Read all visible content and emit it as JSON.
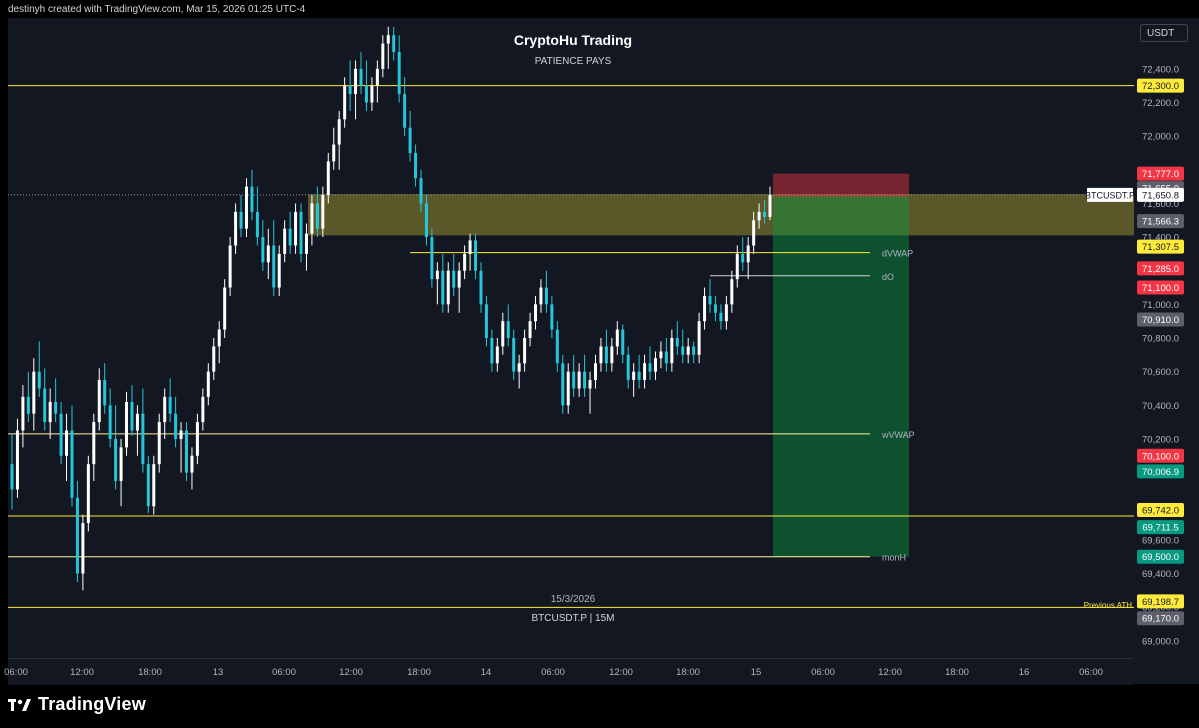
{
  "header": {
    "credit": "destinyh created with TradingView.com, Mar 15, 2026 01:25 UTC-4"
  },
  "currency_button": "USDT",
  "brand": {
    "name": "TradingView",
    "icon": "tradingview-logo-icon"
  },
  "watermark": {
    "title": "CryptoHu Trading",
    "subtitle": "PATIENCE PAYS",
    "date": "15/3/2026",
    "symbol": "BTCUSDT.P | 15M"
  },
  "previous_ath_label": "Previous ATH",
  "colors": {
    "background": "#131722",
    "up_candle": "#ffffff",
    "down_candle": "#26c6da",
    "level_line": "#ffeb3b",
    "label_red": "#f23645",
    "label_green": "#089981",
    "label_yellow": "#ffeb3b",
    "label_gray": "#5d606b"
  },
  "chart_data": {
    "type": "candlestick",
    "symbol": "BTCUSDT.P",
    "interval": "15M",
    "y_axis": {
      "range": [
        68900,
        72450
      ],
      "ticks": [
        72400,
        72200,
        72000,
        71800,
        71600,
        71400,
        71200,
        71000,
        70800,
        70600,
        70400,
        70200,
        70000,
        69800,
        69600,
        69400,
        69200,
        69000
      ],
      "tick_labels": [
        "72,400.0",
        "72,200.0",
        "72,000.0",
        "71,800.0",
        "71,600.0",
        "71,400.0",
        "71,200.0",
        "71,000.0",
        "70,800.0",
        "70,600.0",
        "70,400.0",
        "70,200.0",
        "70,000.0",
        "69,800.0",
        "69,600.0",
        "69,400.0",
        "69,200.0",
        "69,000.0"
      ]
    },
    "x_axis": {
      "tick_labels": [
        "06:00",
        "12:00",
        "18:00",
        "13",
        "06:00",
        "12:00",
        "18:00",
        "14",
        "06:00",
        "12:00",
        "18:00",
        "15",
        "06:00",
        "12:00",
        "18:00",
        "16",
        "06:00"
      ]
    },
    "current_price": {
      "label": "BTCUSDT.P",
      "value": "71,650.8",
      "price": 71650.8
    },
    "price_labels": [
      {
        "value": "72,300.0",
        "price": 72300,
        "color": "yellow"
      },
      {
        "value": "71,777.0",
        "price": 71777,
        "color": "red"
      },
      {
        "value": "71,655.0",
        "price": 71655,
        "color": "gray"
      },
      {
        "value": "71,566.3",
        "price": 71566.3,
        "color": "gray"
      },
      {
        "value": "71,307.5",
        "price": 71307.5,
        "color": "yellow"
      },
      {
        "value": "71,285.0",
        "price": 71285,
        "color": "red"
      },
      {
        "value": "71,100.0",
        "price": 71100,
        "color": "red"
      },
      {
        "value": "70,910.0",
        "price": 70910,
        "color": "gray"
      },
      {
        "value": "70,100.0",
        "price": 70100,
        "color": "red"
      },
      {
        "value": "70,006.9",
        "price": 70006.9,
        "color": "green"
      },
      {
        "value": "69,742.0",
        "price": 69742,
        "color": "yellow"
      },
      {
        "value": "69,711.5",
        "price": 69711.5,
        "color": "green"
      },
      {
        "value": "69,500.0",
        "price": 69500,
        "color": "green"
      },
      {
        "value": "69,198.7",
        "price": 69198.7,
        "color": "yellow"
      },
      {
        "value": "69,170.0",
        "price": 69170,
        "color": "gray"
      }
    ],
    "levels": [
      {
        "price": 72300,
        "label": ""
      },
      {
        "price": 71307.5,
        "label": "dVWAP"
      },
      {
        "price": 71170,
        "label": "dO"
      },
      {
        "price": 70230,
        "label": "wVWAP"
      },
      {
        "price": 69742,
        "label": ""
      },
      {
        "price": 69500,
        "label": "monH"
      },
      {
        "price": 69198.7,
        "label": ""
      }
    ],
    "zones": [
      {
        "kind": "supply",
        "top": 71655,
        "bottom": 71410
      },
      {
        "kind": "stop",
        "top": 71777,
        "bottom": 71640
      },
      {
        "kind": "target",
        "top": 71640,
        "bottom": 69500
      }
    ],
    "candles": [
      {
        "o": 70050,
        "h": 70230,
        "l": 69780,
        "c": 69900
      },
      {
        "o": 69900,
        "h": 70320,
        "l": 69850,
        "c": 70250
      },
      {
        "o": 70250,
        "h": 70520,
        "l": 70150,
        "c": 70450
      },
      {
        "o": 70450,
        "h": 70600,
        "l": 70300,
        "c": 70350
      },
      {
        "o": 70350,
        "h": 70680,
        "l": 70250,
        "c": 70600
      },
      {
        "o": 70600,
        "h": 70780,
        "l": 70450,
        "c": 70500
      },
      {
        "o": 70500,
        "h": 70620,
        "l": 70250,
        "c": 70300
      },
      {
        "o": 70300,
        "h": 70500,
        "l": 70200,
        "c": 70420
      },
      {
        "o": 70420,
        "h": 70560,
        "l": 70300,
        "c": 70350
      },
      {
        "o": 70350,
        "h": 70420,
        "l": 70050,
        "c": 70100
      },
      {
        "o": 70100,
        "h": 70350,
        "l": 69950,
        "c": 70250
      },
      {
        "o": 70250,
        "h": 70400,
        "l": 69800,
        "c": 69850
      },
      {
        "o": 69850,
        "h": 69950,
        "l": 69350,
        "c": 69400
      },
      {
        "o": 69400,
        "h": 69750,
        "l": 69300,
        "c": 69700
      },
      {
        "o": 69700,
        "h": 70100,
        "l": 69650,
        "c": 70050
      },
      {
        "o": 70050,
        "h": 70350,
        "l": 69950,
        "c": 70300
      },
      {
        "o": 70300,
        "h": 70620,
        "l": 70250,
        "c": 70550
      },
      {
        "o": 70550,
        "h": 70650,
        "l": 70350,
        "c": 70400
      },
      {
        "o": 70400,
        "h": 70500,
        "l": 70150,
        "c": 70200
      },
      {
        "o": 70200,
        "h": 70400,
        "l": 69900,
        "c": 69950
      },
      {
        "o": 69950,
        "h": 70200,
        "l": 69800,
        "c": 70150
      },
      {
        "o": 70150,
        "h": 70480,
        "l": 70100,
        "c": 70420
      },
      {
        "o": 70420,
        "h": 70520,
        "l": 70220,
        "c": 70250
      },
      {
        "o": 70250,
        "h": 70400,
        "l": 70100,
        "c": 70350
      },
      {
        "o": 70350,
        "h": 70500,
        "l": 70000,
        "c": 70050
      },
      {
        "o": 70050,
        "h": 70100,
        "l": 69760,
        "c": 69800
      },
      {
        "o": 69800,
        "h": 70100,
        "l": 69750,
        "c": 70050
      },
      {
        "o": 70050,
        "h": 70350,
        "l": 70000,
        "c": 70300
      },
      {
        "o": 70300,
        "h": 70500,
        "l": 70200,
        "c": 70450
      },
      {
        "o": 70450,
        "h": 70560,
        "l": 70300,
        "c": 70350
      },
      {
        "o": 70350,
        "h": 70450,
        "l": 70150,
        "c": 70200
      },
      {
        "o": 70200,
        "h": 70300,
        "l": 70000,
        "c": 70250
      },
      {
        "o": 70250,
        "h": 70300,
        "l": 69950,
        "c": 70000
      },
      {
        "o": 70000,
        "h": 70150,
        "l": 69900,
        "c": 70100
      },
      {
        "o": 70100,
        "h": 70350,
        "l": 70050,
        "c": 70300
      },
      {
        "o": 70300,
        "h": 70500,
        "l": 70250,
        "c": 70450
      },
      {
        "o": 70450,
        "h": 70650,
        "l": 70400,
        "c": 70600
      },
      {
        "o": 70600,
        "h": 70800,
        "l": 70550,
        "c": 70750
      },
      {
        "o": 70750,
        "h": 70900,
        "l": 70650,
        "c": 70850
      },
      {
        "o": 70850,
        "h": 71150,
        "l": 70800,
        "c": 71100
      },
      {
        "o": 71100,
        "h": 71400,
        "l": 71050,
        "c": 71350
      },
      {
        "o": 71350,
        "h": 71600,
        "l": 71300,
        "c": 71550
      },
      {
        "o": 71550,
        "h": 71650,
        "l": 71400,
        "c": 71450
      },
      {
        "o": 71450,
        "h": 71750,
        "l": 71400,
        "c": 71700
      },
      {
        "o": 71700,
        "h": 71800,
        "l": 71500,
        "c": 71550
      },
      {
        "o": 71550,
        "h": 71700,
        "l": 71350,
        "c": 71400
      },
      {
        "o": 71400,
        "h": 71500,
        "l": 71200,
        "c": 71250
      },
      {
        "o": 71250,
        "h": 71450,
        "l": 71150,
        "c": 71350
      },
      {
        "o": 71350,
        "h": 71500,
        "l": 71050,
        "c": 71100
      },
      {
        "o": 71100,
        "h": 71350,
        "l": 71050,
        "c": 71300
      },
      {
        "o": 71300,
        "h": 71500,
        "l": 71250,
        "c": 71450
      },
      {
        "o": 71450,
        "h": 71550,
        "l": 71300,
        "c": 71350
      },
      {
        "o": 71350,
        "h": 71600,
        "l": 71300,
        "c": 71550
      },
      {
        "o": 71550,
        "h": 71600,
        "l": 71250,
        "c": 71300
      },
      {
        "o": 71300,
        "h": 71480,
        "l": 71200,
        "c": 71420
      },
      {
        "o": 71420,
        "h": 71650,
        "l": 71350,
        "c": 71600
      },
      {
        "o": 71600,
        "h": 71700,
        "l": 71400,
        "c": 71450
      },
      {
        "o": 71450,
        "h": 71700,
        "l": 71400,
        "c": 71650
      },
      {
        "o": 71650,
        "h": 71900,
        "l": 71600,
        "c": 71850
      },
      {
        "o": 71850,
        "h": 72050,
        "l": 71800,
        "c": 71950
      },
      {
        "o": 71950,
        "h": 72150,
        "l": 71800,
        "c": 72100
      },
      {
        "o": 72100,
        "h": 72350,
        "l": 72050,
        "c": 72300
      },
      {
        "o": 72300,
        "h": 72450,
        "l": 72150,
        "c": 72250
      },
      {
        "o": 72250,
        "h": 72450,
        "l": 72100,
        "c": 72400
      },
      {
        "o": 72400,
        "h": 72500,
        "l": 72250,
        "c": 72300
      },
      {
        "o": 72300,
        "h": 72450,
        "l": 72150,
        "c": 72200
      },
      {
        "o": 72200,
        "h": 72350,
        "l": 72150,
        "c": 72300
      },
      {
        "o": 72300,
        "h": 72450,
        "l": 72200,
        "c": 72400
      },
      {
        "o": 72400,
        "h": 72600,
        "l": 72350,
        "c": 72550
      },
      {
        "o": 72550,
        "h": 72650,
        "l": 72400,
        "c": 72600
      },
      {
        "o": 72600,
        "h": 72650,
        "l": 72450,
        "c": 72500
      },
      {
        "o": 72500,
        "h": 72600,
        "l": 72200,
        "c": 72250
      },
      {
        "o": 72250,
        "h": 72350,
        "l": 72000,
        "c": 72050
      },
      {
        "o": 72050,
        "h": 72150,
        "l": 71850,
        "c": 71900
      },
      {
        "o": 71900,
        "h": 71950,
        "l": 71700,
        "c": 71750
      },
      {
        "o": 71750,
        "h": 71800,
        "l": 71550,
        "c": 71600
      },
      {
        "o": 71600,
        "h": 71650,
        "l": 71350,
        "c": 71400
      },
      {
        "o": 71400,
        "h": 71450,
        "l": 71100,
        "c": 71150
      },
      {
        "o": 71150,
        "h": 71250,
        "l": 71000,
        "c": 71200
      },
      {
        "o": 71200,
        "h": 71300,
        "l": 70950,
        "c": 71000
      },
      {
        "o": 71000,
        "h": 71250,
        "l": 70950,
        "c": 71200
      },
      {
        "o": 71200,
        "h": 71300,
        "l": 71050,
        "c": 71100
      },
      {
        "o": 71100,
        "h": 71250,
        "l": 70950,
        "c": 71200
      },
      {
        "o": 71200,
        "h": 71350,
        "l": 71150,
        "c": 71300
      },
      {
        "o": 71300,
        "h": 71420,
        "l": 71200,
        "c": 71380
      },
      {
        "o": 71380,
        "h": 71420,
        "l": 71150,
        "c": 71200
      },
      {
        "o": 71200,
        "h": 71250,
        "l": 70950,
        "c": 71000
      },
      {
        "o": 71000,
        "h": 71050,
        "l": 70750,
        "c": 70800
      },
      {
        "o": 70800,
        "h": 70850,
        "l": 70600,
        "c": 70650
      },
      {
        "o": 70650,
        "h": 70800,
        "l": 70600,
        "c": 70750
      },
      {
        "o": 70750,
        "h": 70950,
        "l": 70700,
        "c": 70900
      },
      {
        "o": 70900,
        "h": 71000,
        "l": 70750,
        "c": 70800
      },
      {
        "o": 70800,
        "h": 70850,
        "l": 70550,
        "c": 70600
      },
      {
        "o": 70600,
        "h": 70700,
        "l": 70500,
        "c": 70650
      },
      {
        "o": 70650,
        "h": 70850,
        "l": 70600,
        "c": 70800
      },
      {
        "o": 70800,
        "h": 70950,
        "l": 70750,
        "c": 70900
      },
      {
        "o": 70900,
        "h": 71050,
        "l": 70850,
        "c": 71000
      },
      {
        "o": 71000,
        "h": 71150,
        "l": 70950,
        "c": 71100
      },
      {
        "o": 71100,
        "h": 71200,
        "l": 70950,
        "c": 71000
      },
      {
        "o": 71000,
        "h": 71050,
        "l": 70800,
        "c": 70850
      },
      {
        "o": 70850,
        "h": 70900,
        "l": 70600,
        "c": 70650
      },
      {
        "o": 70650,
        "h": 70700,
        "l": 70350,
        "c": 70400
      },
      {
        "o": 70400,
        "h": 70650,
        "l": 70350,
        "c": 70600
      },
      {
        "o": 70600,
        "h": 70700,
        "l": 70450,
        "c": 70500
      },
      {
        "o": 70500,
        "h": 70650,
        "l": 70450,
        "c": 70600
      },
      {
        "o": 70600,
        "h": 70700,
        "l": 70450,
        "c": 70500
      },
      {
        "o": 70500,
        "h": 70600,
        "l": 70350,
        "c": 70550
      },
      {
        "o": 70550,
        "h": 70700,
        "l": 70500,
        "c": 70650
      },
      {
        "o": 70650,
        "h": 70800,
        "l": 70600,
        "c": 70750
      },
      {
        "o": 70750,
        "h": 70850,
        "l": 70600,
        "c": 70650
      },
      {
        "o": 70650,
        "h": 70800,
        "l": 70600,
        "c": 70750
      },
      {
        "o": 70750,
        "h": 70900,
        "l": 70700,
        "c": 70850
      },
      {
        "o": 70850,
        "h": 70880,
        "l": 70650,
        "c": 70700
      },
      {
        "o": 70700,
        "h": 70750,
        "l": 70500,
        "c": 70550
      },
      {
        "o": 70550,
        "h": 70650,
        "l": 70450,
        "c": 70600
      },
      {
        "o": 70600,
        "h": 70700,
        "l": 70500,
        "c": 70550
      },
      {
        "o": 70550,
        "h": 70700,
        "l": 70500,
        "c": 70650
      },
      {
        "o": 70650,
        "h": 70750,
        "l": 70550,
        "c": 70600
      },
      {
        "o": 70600,
        "h": 70720,
        "l": 70550,
        "c": 70680
      },
      {
        "o": 70680,
        "h": 70780,
        "l": 70620,
        "c": 70720
      },
      {
        "o": 70720,
        "h": 70800,
        "l": 70600,
        "c": 70650
      },
      {
        "o": 70650,
        "h": 70850,
        "l": 70600,
        "c": 70800
      },
      {
        "o": 70800,
        "h": 70900,
        "l": 70700,
        "c": 70750
      },
      {
        "o": 70750,
        "h": 70850,
        "l": 70650,
        "c": 70700
      },
      {
        "o": 70700,
        "h": 70800,
        "l": 70650,
        "c": 70750
      },
      {
        "o": 70750,
        "h": 70780,
        "l": 70650,
        "c": 70700
      },
      {
        "o": 70700,
        "h": 70950,
        "l": 70650,
        "c": 70900
      },
      {
        "o": 70900,
        "h": 71100,
        "l": 70850,
        "c": 71050
      },
      {
        "o": 71050,
        "h": 71150,
        "l": 70950,
        "c": 71000
      },
      {
        "o": 71000,
        "h": 71050,
        "l": 70900,
        "c": 70950
      },
      {
        "o": 70950,
        "h": 71000,
        "l": 70850,
        "c": 70900
      },
      {
        "o": 70900,
        "h": 71050,
        "l": 70850,
        "c": 71000
      },
      {
        "o": 71000,
        "h": 71200,
        "l": 70950,
        "c": 71150
      },
      {
        "o": 71150,
        "h": 71350,
        "l": 71100,
        "c": 71300
      },
      {
        "o": 71300,
        "h": 71400,
        "l": 71200,
        "c": 71250
      },
      {
        "o": 71250,
        "h": 71400,
        "l": 71150,
        "c": 71350
      },
      {
        "o": 71350,
        "h": 71550,
        "l": 71300,
        "c": 71500
      },
      {
        "o": 71500,
        "h": 71600,
        "l": 71450,
        "c": 71550
      },
      {
        "o": 71550,
        "h": 71620,
        "l": 71480,
        "c": 71520
      },
      {
        "o": 71520,
        "h": 71700,
        "l": 71500,
        "c": 71650
      }
    ]
  }
}
